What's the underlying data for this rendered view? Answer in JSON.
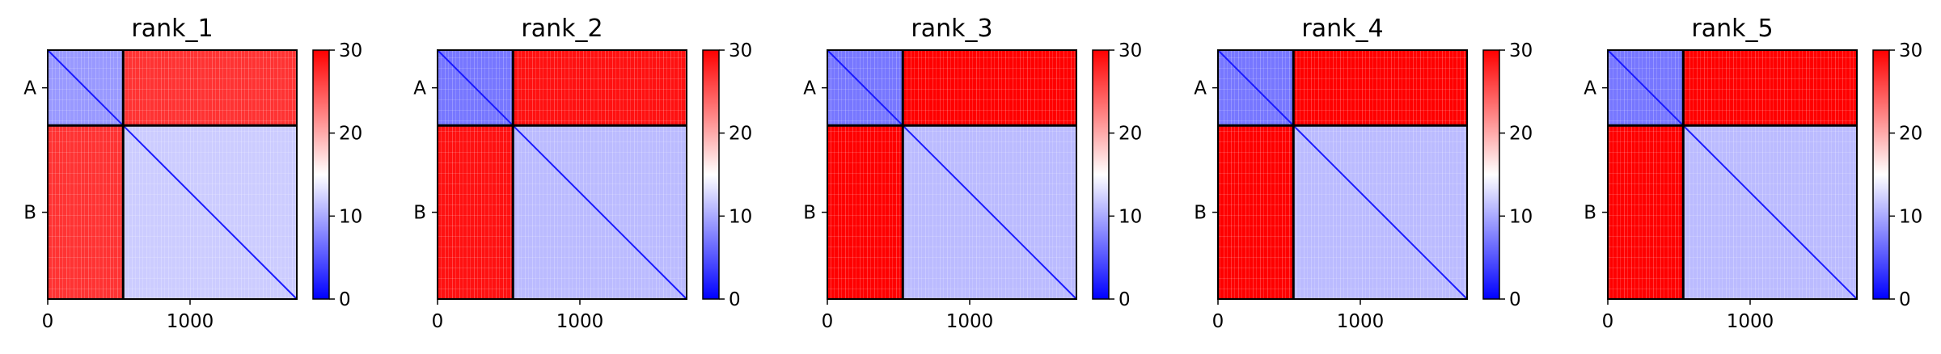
{
  "chart_data": [
    {
      "type": "heatmap",
      "title": "rank_1",
      "row_labels": [
        "A",
        "B"
      ],
      "x_ticks": [
        0,
        1000
      ],
      "colorbar_ticks": [
        0,
        10,
        20,
        30
      ],
      "colorbar_range": [
        0,
        30
      ],
      "chains": [
        {
          "name": "A",
          "start": 0,
          "end": 530
        },
        {
          "name": "B",
          "start": 530,
          "end": 1750
        }
      ],
      "blocks": {
        "AA": 9,
        "AB": 27,
        "BA": 27,
        "BB": 12
      },
      "grid": false,
      "legend": "colorbar-right"
    },
    {
      "type": "heatmap",
      "title": "rank_2",
      "row_labels": [
        "A",
        "B"
      ],
      "x_ticks": [
        0,
        1000
      ],
      "colorbar_ticks": [
        0,
        10,
        20,
        30
      ],
      "colorbar_range": [
        0,
        30
      ],
      "chains": [
        {
          "name": "A",
          "start": 0,
          "end": 530
        },
        {
          "name": "B",
          "start": 530,
          "end": 1750
        }
      ],
      "blocks": {
        "AA": 7,
        "AB": 29,
        "BA": 29,
        "BB": 11
      },
      "grid": false,
      "legend": "colorbar-right"
    },
    {
      "type": "heatmap",
      "title": "rank_3",
      "row_labels": [
        "A",
        "B"
      ],
      "x_ticks": [
        0,
        1000
      ],
      "colorbar_ticks": [
        0,
        10,
        20,
        30
      ],
      "colorbar_range": [
        0,
        30
      ],
      "chains": [
        {
          "name": "A",
          "start": 0,
          "end": 530
        },
        {
          "name": "B",
          "start": 530,
          "end": 1750
        }
      ],
      "blocks": {
        "AA": 7,
        "AB": 30,
        "BA": 30,
        "BB": 11
      },
      "grid": false,
      "legend": "colorbar-right"
    },
    {
      "type": "heatmap",
      "title": "rank_4",
      "row_labels": [
        "A",
        "B"
      ],
      "x_ticks": [
        0,
        1000
      ],
      "colorbar_ticks": [
        0,
        10,
        20,
        30
      ],
      "colorbar_range": [
        0,
        30
      ],
      "chains": [
        {
          "name": "A",
          "start": 0,
          "end": 530
        },
        {
          "name": "B",
          "start": 530,
          "end": 1750
        }
      ],
      "blocks": {
        "AA": 7,
        "AB": 30,
        "BA": 30,
        "BB": 11
      },
      "grid": false,
      "legend": "colorbar-right"
    },
    {
      "type": "heatmap",
      "title": "rank_5",
      "row_labels": [
        "A",
        "B"
      ],
      "x_ticks": [
        0,
        1000
      ],
      "colorbar_ticks": [
        0,
        10,
        20,
        30
      ],
      "colorbar_range": [
        0,
        30
      ],
      "chains": [
        {
          "name": "A",
          "start": 0,
          "end": 530
        },
        {
          "name": "B",
          "start": 530,
          "end": 1750
        }
      ],
      "blocks": {
        "AA": 7,
        "AB": 30,
        "BA": 30,
        "BB": 11
      },
      "grid": false,
      "legend": "colorbar-right"
    }
  ],
  "colors": {
    "low": "#0000ff",
    "mid": "#ffffff",
    "high": "#ff0000",
    "axes": "#000000"
  }
}
